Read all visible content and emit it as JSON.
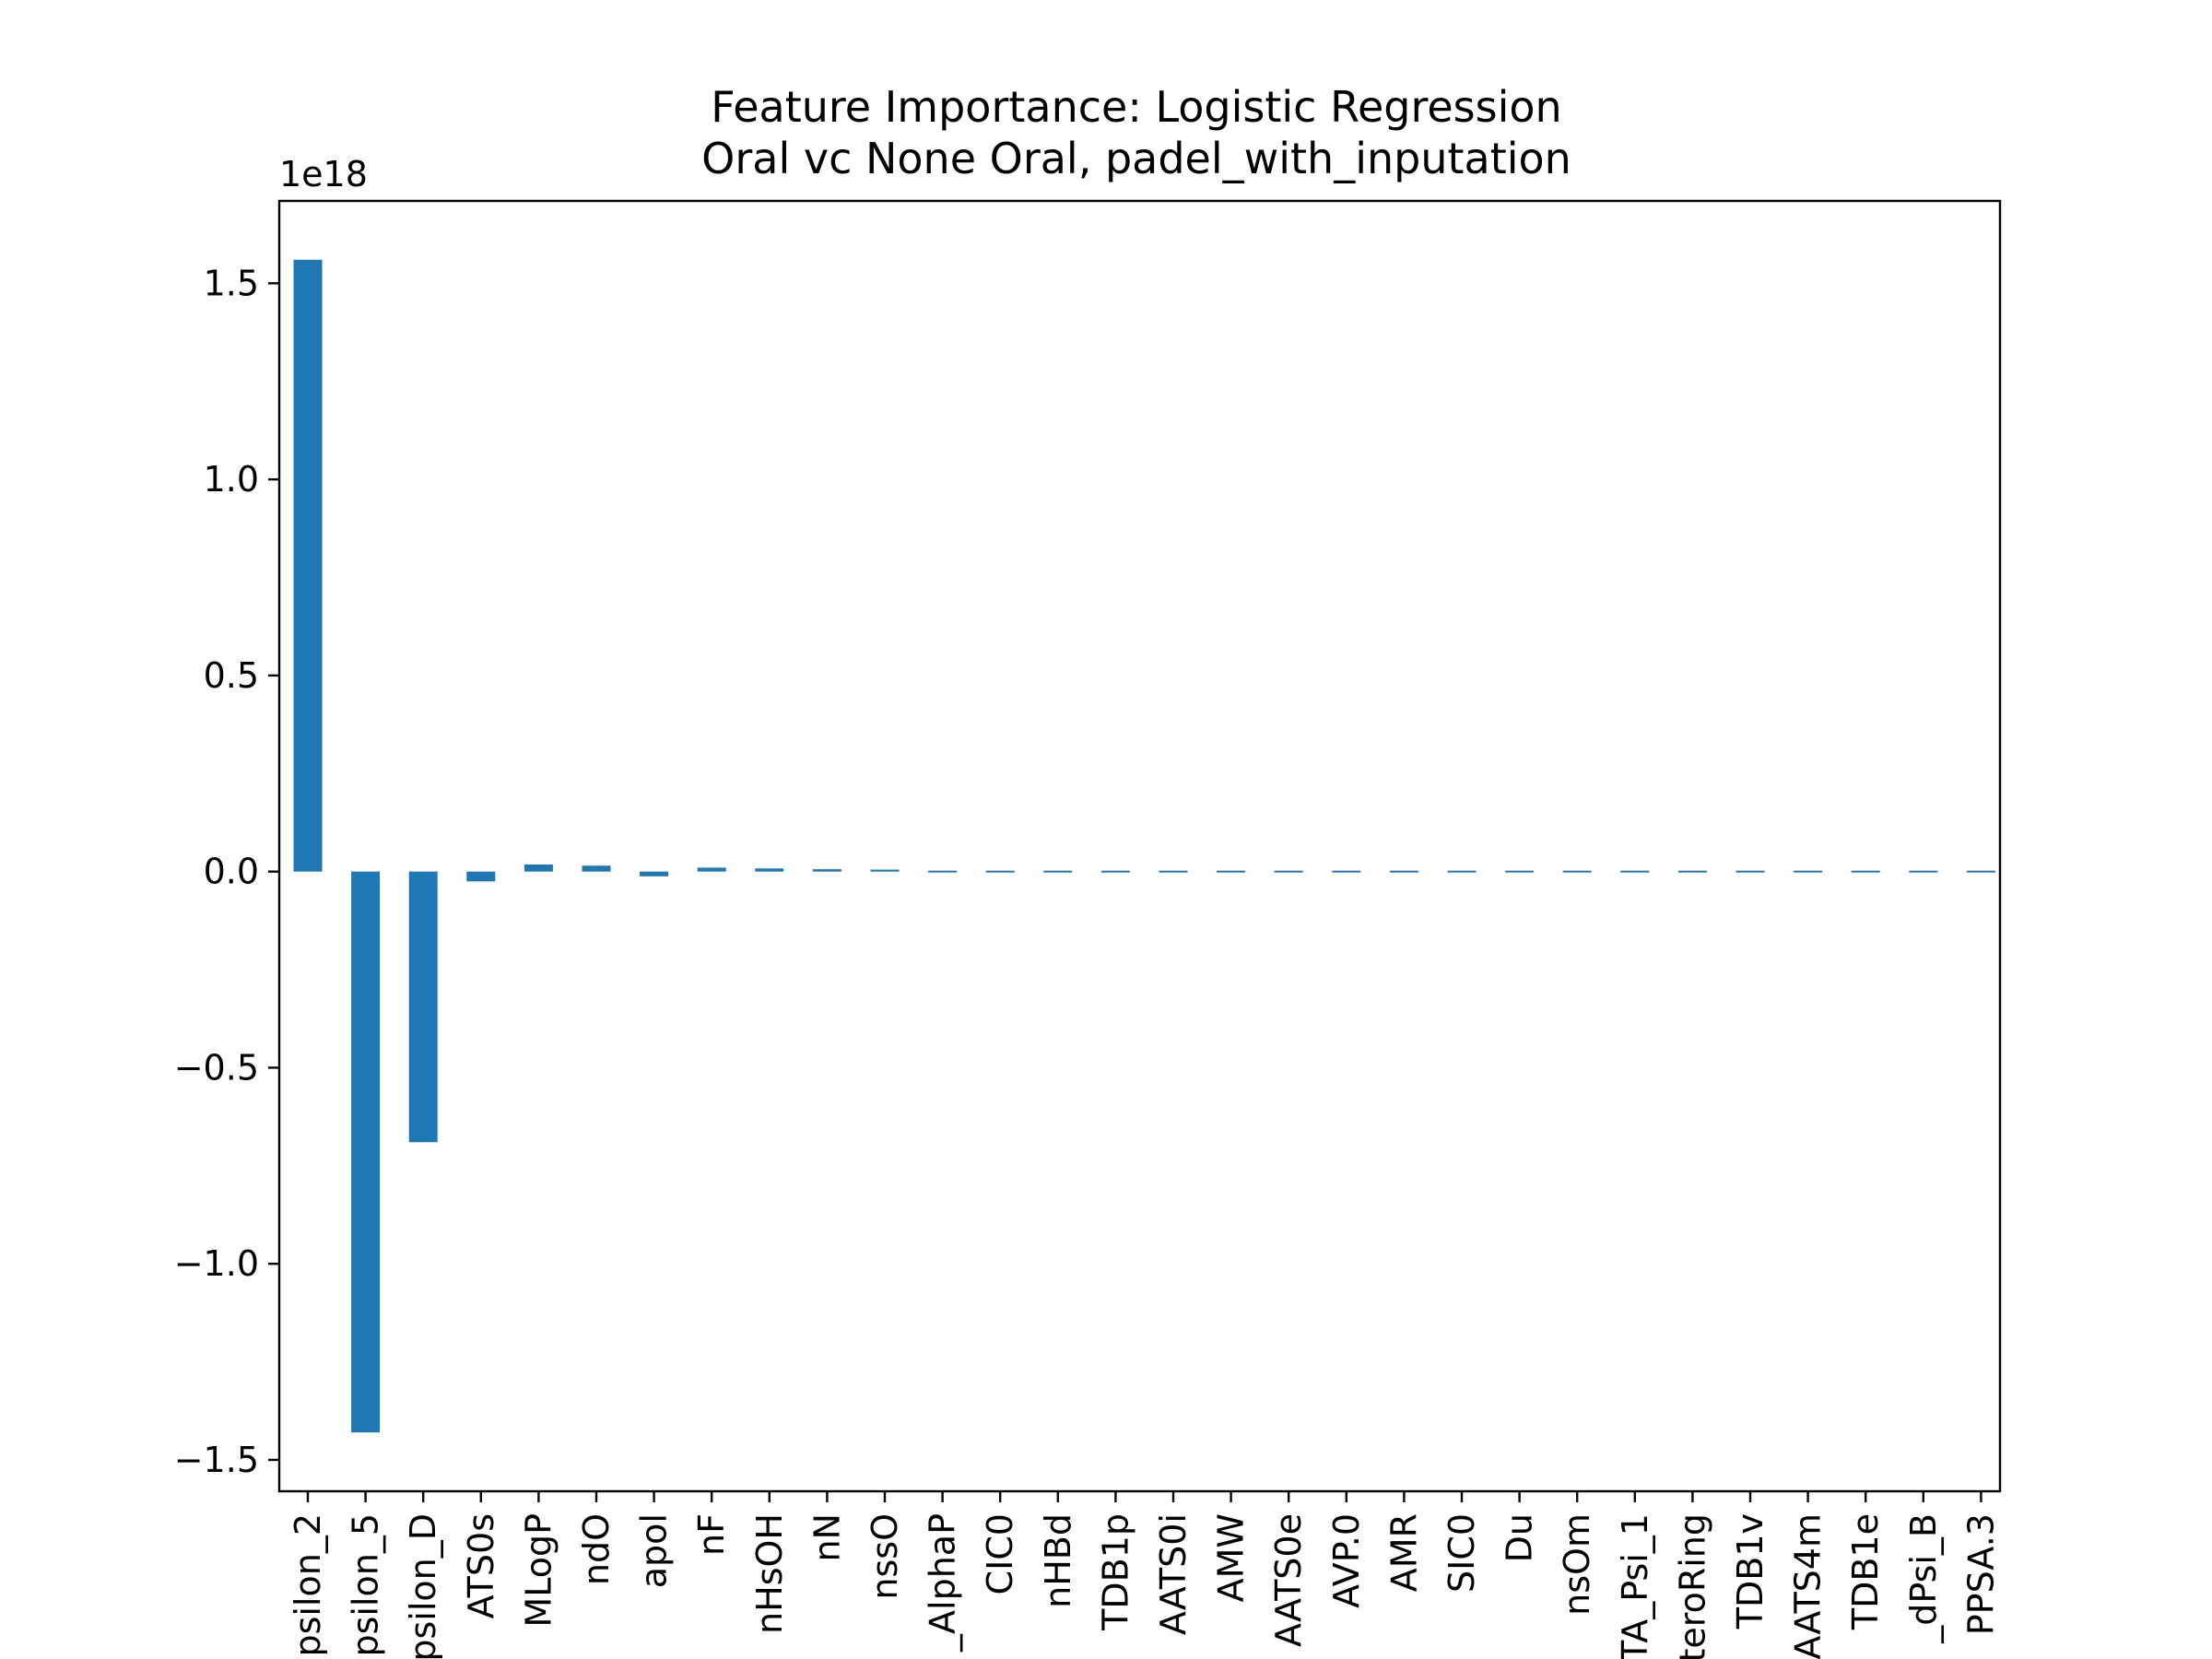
{
  "chart_data": {
    "type": "bar",
    "title": "Feature Importance: Logistic Regression",
    "subtitle": "Oral vc None Oral, padel_with_inputation",
    "xlabel": "",
    "ylabel": "",
    "scale_label": "1e18",
    "scale_factor": 1e+18,
    "ylim": [
      -1.58,
      1.71
    ],
    "y_ticks": [
      1.5,
      1.0,
      0.5,
      0.0,
      -0.5,
      -1.0,
      -1.5
    ],
    "y_tick_labels": [
      "1.5",
      "1.0",
      "0.5",
      "0.0",
      "−0.5",
      "−1.0",
      "−1.5"
    ],
    "grid": false,
    "bar_color": "#1f77b4",
    "categories": [
      "psilon_2",
      "psilon_5",
      "psilon_D",
      "ATS0s",
      "MLogP",
      "ndO",
      "apol",
      "nF",
      "nHsOH",
      "nN",
      "nssO",
      "_AlphaP",
      "CIC0",
      "nHBd",
      "TDB1p",
      "AATS0i",
      "AMW",
      "AATS0e",
      "AVP.0",
      "AMR",
      "SIC0",
      "Du",
      "nsOm",
      "TA_Psi_1",
      "teroRing",
      "TDB1v",
      "AATS4m",
      "TDB1e",
      "_dPsi_B",
      "PPSA.3"
    ],
    "values": [
      1.56,
      -1.43,
      -0.69,
      -0.025,
      0.018,
      0.015,
      -0.012,
      0.01,
      0.008,
      0.006,
      0.005,
      -0.004,
      0.004,
      0.003,
      0.003,
      0.003,
      0.003,
      -0.002,
      0.002,
      0.002,
      0.002,
      -0.002,
      0.002,
      0.002,
      -0.001,
      -0.001,
      -0.001,
      -0.001,
      -0.001,
      -0.001
    ]
  }
}
